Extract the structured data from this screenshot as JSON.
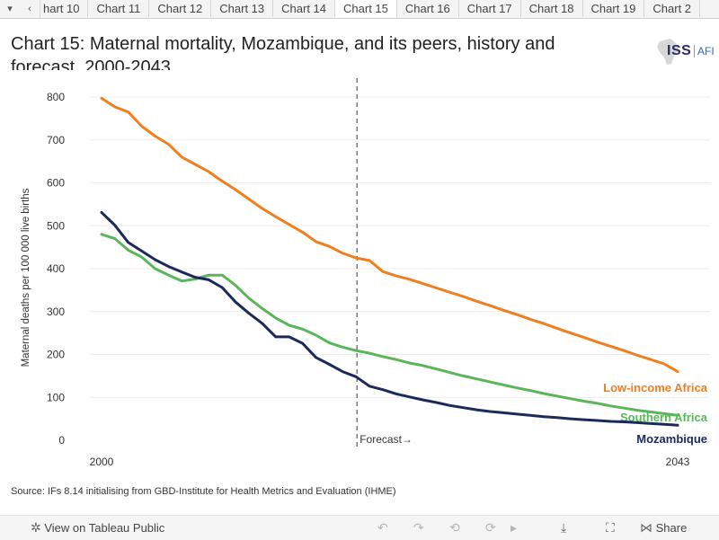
{
  "tabs": {
    "prev_arrow": "▾",
    "left_arrow": "‹",
    "items": [
      {
        "label": "hart 10"
      },
      {
        "label": "Chart 11"
      },
      {
        "label": "Chart 12"
      },
      {
        "label": "Chart 13"
      },
      {
        "label": "Chart 14"
      },
      {
        "label": "Chart 15",
        "active": true
      },
      {
        "label": "Chart 16"
      },
      {
        "label": "Chart 17"
      },
      {
        "label": "Chart 18"
      },
      {
        "label": "Chart 19"
      },
      {
        "label": "Chart 2"
      }
    ]
  },
  "header": {
    "title": "Chart 15: Maternal mortality, Mozambique, and its peers, history and forecast, 2000-2043",
    "logo_text": "ISS",
    "logo_suffix": "AFI"
  },
  "chart_data": {
    "type": "line",
    "title": "Chart 15: Maternal mortality, Mozambique, and its peers, history and forecast, 2000-2043",
    "ylabel": "Maternal deaths per 100 000 live births",
    "xlabel": "",
    "xlim": [
      2000,
      2043
    ],
    "ylim": [
      0,
      800
    ],
    "yticks": [
      0,
      100,
      200,
      300,
      400,
      500,
      600,
      700,
      800
    ],
    "x_tick_labels": [
      {
        "x": 2000,
        "label": "2000"
      },
      {
        "x": 2043,
        "label": "2043"
      }
    ],
    "forecast_start": 2019,
    "forecast_label": "Forecast→",
    "grid": true,
    "series": [
      {
        "name": "Low-income Africa",
        "color": "#f07f20",
        "x": [
          2000,
          2001,
          2002,
          2003,
          2004,
          2005,
          2006,
          2007,
          2008,
          2009,
          2010,
          2011,
          2012,
          2013,
          2014,
          2015,
          2016,
          2017,
          2018,
          2019,
          2020,
          2021,
          2022,
          2023,
          2024,
          2025,
          2026,
          2027,
          2028,
          2029,
          2030,
          2031,
          2032,
          2033,
          2034,
          2035,
          2036,
          2037,
          2038,
          2039,
          2040,
          2041,
          2042,
          2043
        ],
        "values": [
          797,
          777,
          765,
          732,
          709,
          690,
          660,
          643,
          626,
          604,
          584,
          562,
          540,
          521,
          503,
          485,
          463,
          452,
          436,
          425,
          419,
          393,
          383,
          375,
          365,
          355,
          345,
          335,
          324,
          314,
          303,
          293,
          282,
          272,
          261,
          250,
          240,
          229,
          219,
          209,
          198,
          188,
          178,
          160
        ]
      },
      {
        "name": "Southern Africa",
        "color": "#5bb55a",
        "x": [
          2000,
          2001,
          2002,
          2003,
          2004,
          2005,
          2006,
          2007,
          2008,
          2009,
          2010,
          2011,
          2012,
          2013,
          2014,
          2015,
          2016,
          2017,
          2018,
          2019,
          2020,
          2021,
          2022,
          2023,
          2024,
          2025,
          2026,
          2027,
          2028,
          2029,
          2030,
          2031,
          2032,
          2033,
          2034,
          2035,
          2036,
          2037,
          2038,
          2039,
          2040,
          2041,
          2042,
          2043
        ],
        "values": [
          480,
          470,
          443,
          427,
          400,
          385,
          371,
          376,
          385,
          385,
          361,
          331,
          307,
          285,
          268,
          259,
          245,
          227,
          217,
          209,
          203,
          195,
          188,
          180,
          174,
          166,
          158,
          150,
          143,
          136,
          129,
          122,
          116,
          109,
          103,
          97,
          91,
          86,
          80,
          75,
          70,
          66,
          62,
          58
        ]
      },
      {
        "name": "Mozambique",
        "color": "#1b2a5a",
        "x": [
          2000,
          2001,
          2002,
          2003,
          2004,
          2005,
          2006,
          2007,
          2008,
          2009,
          2010,
          2011,
          2012,
          2013,
          2014,
          2015,
          2016,
          2017,
          2018,
          2019,
          2020,
          2021,
          2022,
          2023,
          2024,
          2025,
          2026,
          2027,
          2028,
          2029,
          2030,
          2031,
          2032,
          2033,
          2034,
          2035,
          2036,
          2037,
          2038,
          2039,
          2040,
          2041,
          2042,
          2043
        ],
        "values": [
          531,
          501,
          461,
          441,
          421,
          405,
          392,
          380,
          374,
          356,
          322,
          296,
          272,
          241,
          241,
          226,
          193,
          177,
          160,
          148,
          126,
          118,
          108,
          101,
          94,
          88,
          81,
          76,
          71,
          67,
          64,
          61,
          58,
          55,
          53,
          50,
          48,
          46,
          44,
          43,
          41,
          39,
          37,
          35
        ]
      }
    ]
  },
  "source": "Source: IFs 8.14 initialising from GBD-Institute for Health Metrics and Evaluation (IHME)",
  "footer": {
    "tableau_icon": "✲",
    "view_label": "View on Tableau Public",
    "undo_icon": "↶",
    "redo_icon": "↷",
    "revert_icon": "⟲",
    "refresh_icon": "⟳",
    "pause_icon": "▸",
    "download_icon": "⤓",
    "fullscreen_icon": "⛶",
    "share_icon": "⋈",
    "share_label": "Share"
  }
}
